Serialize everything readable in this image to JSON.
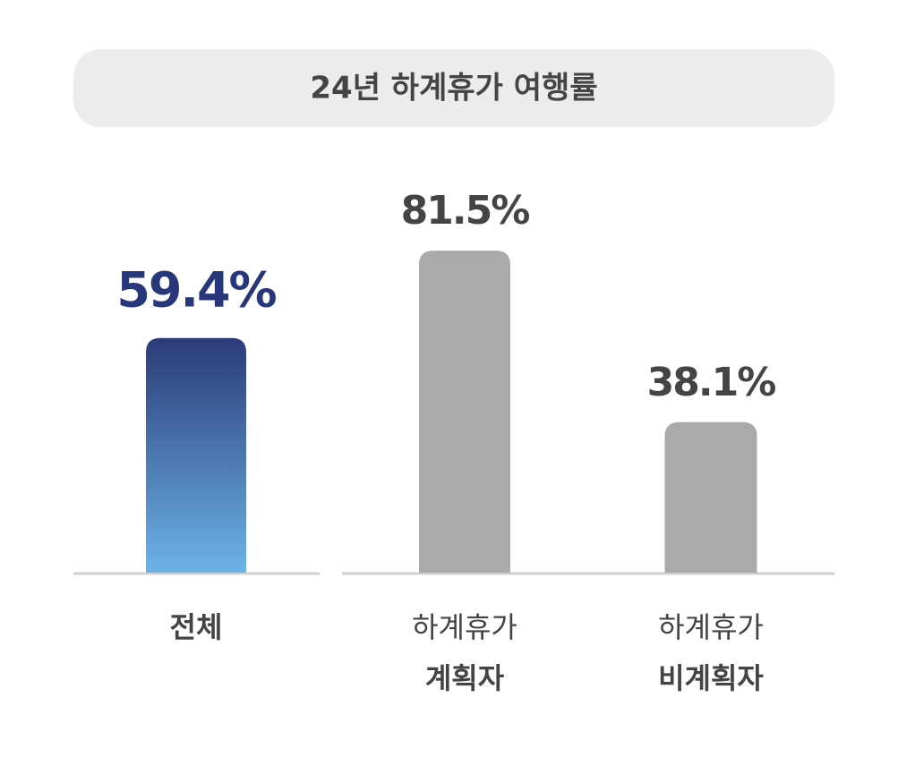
{
  "chart_data": {
    "type": "bar",
    "title": "24년 하계휴가 여행률",
    "categories": [
      [
        "전체"
      ],
      [
        "하계휴가",
        "계획자"
      ],
      [
        "하계휴가",
        "비계획자"
      ]
    ],
    "values": [
      59.4,
      81.5,
      38.1
    ],
    "value_labels": [
      "59.4%",
      "81.5%",
      "38.1%"
    ],
    "bar_fills": [
      [
        "#2b3b78",
        "#6cb3e8"
      ],
      [
        "#a9aaaa",
        "#a9aaaa"
      ],
      [
        "#a9aaaa",
        "#a9aaaa"
      ]
    ],
    "label_colors": [
      "#27377a",
      "#444444",
      "#444444"
    ],
    "ylim": [
      0,
      100
    ]
  }
}
